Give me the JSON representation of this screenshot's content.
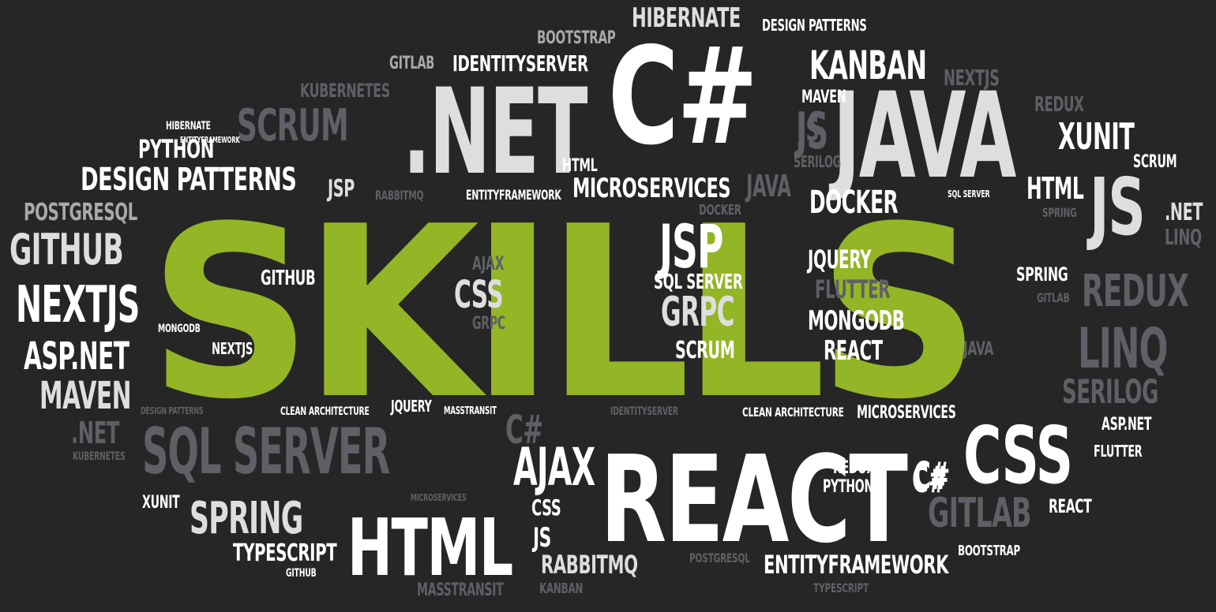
{
  "words": [
    {
      "text": "SKILLS",
      "tone": "green"
    },
    {
      "text": "REACT",
      "tone": "white"
    },
    {
      "text": ".NET",
      "tone": "light"
    },
    {
      "text": "C#",
      "tone": "white"
    },
    {
      "text": "JAVA",
      "tone": "light"
    },
    {
      "text": "HTML",
      "tone": "white"
    },
    {
      "text": "CSS",
      "tone": "white"
    },
    {
      "text": "JS",
      "tone": "light"
    },
    {
      "text": "SQL SERVER",
      "tone": "dark"
    },
    {
      "text": "LINQ",
      "tone": "dark"
    },
    {
      "text": "REDUX",
      "tone": "dark"
    },
    {
      "text": "GITLAB",
      "tone": "dark"
    },
    {
      "text": "SCRUM",
      "tone": "dark"
    },
    {
      "text": "JSP",
      "tone": "white"
    },
    {
      "text": "AJAX",
      "tone": "white"
    },
    {
      "text": "JS",
      "tone": "dark"
    },
    {
      "text": "NEXTJS",
      "tone": "white"
    },
    {
      "text": "GITHUB",
      "tone": "light"
    },
    {
      "text": "ASP.NET",
      "tone": "white"
    },
    {
      "text": "MAVEN",
      "tone": "light"
    },
    {
      "text": "DESIGN PATTERNS",
      "tone": "white"
    },
    {
      "text": "SPRING",
      "tone": "light"
    },
    {
      "text": "KANBAN",
      "tone": "white"
    },
    {
      "text": "XUNIT",
      "tone": "white"
    },
    {
      "text": "CSS",
      "tone": "light"
    },
    {
      "text": "C#",
      "tone": "dark"
    },
    {
      "text": "GRPC",
      "tone": "light"
    },
    {
      "text": "DOCKER",
      "tone": "white"
    },
    {
      "text": "SERILOG",
      "tone": "dark"
    },
    {
      "text": "HTML",
      "tone": "white"
    },
    {
      "text": "C#",
      "tone": "white"
    },
    {
      "text": "HIBERNATE",
      "tone": "light"
    },
    {
      "text": "MICROSERVICES",
      "tone": "white"
    },
    {
      "text": "ENTITYFRAMEWORK",
      "tone": "white"
    },
    {
      "text": "RABBITMQ",
      "tone": "light"
    },
    {
      "text": "MONGODB",
      "tone": "white"
    },
    {
      "text": "REACT",
      "tone": "white"
    },
    {
      "text": "JQUERY",
      "tone": "white"
    },
    {
      "text": "FLUTTER",
      "tone": "dark"
    },
    {
      "text": "POSTGRESQL",
      "tone": "mid"
    },
    {
      "text": "PYTHON",
      "tone": "white"
    },
    {
      "text": "IDENTITYSERVER",
      "tone": "white"
    },
    {
      "text": "JAVA",
      "tone": "dark"
    },
    {
      "text": "JS",
      "tone": "dark"
    },
    {
      "text": "SCRUM",
      "tone": "white"
    },
    {
      "text": "TYPESCRIPT",
      "tone": "white"
    },
    {
      "text": "SPRING",
      "tone": "white"
    },
    {
      "text": "",
      "tone": "dark"
    },
    {
      "text": "",
      "tone": "white"
    },
    {
      "text": "BOOTSTRAP",
      "tone": "mid"
    },
    {
      "text": "DESIGN PATTERNS",
      "tone": "white"
    },
    {
      "text": "GITLAB",
      "tone": "mid"
    },
    {
      "text": "KUBERNETES",
      "tone": "dark"
    },
    {
      "text": "NEXTJS",
      "tone": "dark"
    },
    {
      "text": "REDUX",
      "tone": "dark"
    },
    {
      "text": "MAVEN",
      "tone": "white"
    },
    {
      "text": "HIBERNATE",
      "tone": "white"
    },
    {
      "text": "ENTITYFRAMEWORK",
      "tone": "white"
    },
    {
      "text": "SCRUM",
      "tone": "white"
    },
    {
      "text": "SERILOG",
      "tone": "dark"
    },
    {
      "text": "HTML",
      "tone": "white"
    },
    {
      "text": "JSP",
      "tone": "light"
    },
    {
      "text": "RABBITMQ",
      "tone": "dark"
    },
    {
      "text": "ENTITYFRAMEWORK",
      "tone": "white"
    },
    {
      "text": "SQL SERVER",
      "tone": "white"
    },
    {
      "text": ".NET",
      "tone": "light"
    },
    {
      "text": "LINQ",
      "tone": "dark"
    },
    {
      "text": "SPRING",
      "tone": "dark"
    },
    {
      "text": "DOCKER",
      "tone": "dark"
    },
    {
      "text": "AJAX",
      "tone": "dark"
    },
    {
      "text": "GITHUB",
      "tone": "white"
    },
    {
      "text": "SQL SERVER",
      "tone": "white"
    },
    {
      "text": "GITLAB",
      "tone": "dark"
    },
    {
      "text": "GRPC",
      "tone": "dark"
    },
    {
      "text": "MONGODB",
      "tone": "white"
    },
    {
      "text": "NEXTJS",
      "tone": "white"
    },
    {
      "text": "JAVA",
      "tone": "dark"
    },
    {
      "text": "DESIGN PATTERNS",
      "tone": "dark"
    },
    {
      "text": "CLEAN ARCHITECTURE",
      "tone": "white"
    },
    {
      "text": "JQUERY",
      "tone": "white"
    },
    {
      "text": "MASSTRANSIT",
      "tone": "white"
    },
    {
      "text": "IDENTITYSERVER",
      "tone": "dark"
    },
    {
      "text": "CLEAN ARCHITECTURE",
      "tone": "white"
    },
    {
      "text": "MICROSERVICES",
      "tone": "white"
    },
    {
      "text": "ASP.NET",
      "tone": "white"
    },
    {
      "text": ".NET",
      "tone": "dark"
    },
    {
      "text": "KUBERNETES",
      "tone": "dark"
    },
    {
      "text": "FLUTTER",
      "tone": "white"
    },
    {
      "text": "REDUX",
      "tone": "white"
    },
    {
      "text": "PYTHON",
      "tone": "white"
    },
    {
      "text": "MICROSERVICES",
      "tone": "dark"
    },
    {
      "text": "XUNIT",
      "tone": "white"
    },
    {
      "text": "CSS",
      "tone": "white"
    },
    {
      "text": "REACT",
      "tone": "white"
    },
    {
      "text": "JS",
      "tone": "white"
    },
    {
      "text": "BOOTSTRAP",
      "tone": "white"
    },
    {
      "text": "POSTGRESQL",
      "tone": "dark"
    },
    {
      "text": "GITHUB",
      "tone": "white"
    },
    {
      "text": "MASSTRANSIT",
      "tone": "dark"
    },
    {
      "text": "KANBAN",
      "tone": "dark"
    },
    {
      "text": "TYPESCRIPT",
      "tone": "dark"
    },
    {
      "text": "C#",
      "tone": "white"
    }
  ]
}
